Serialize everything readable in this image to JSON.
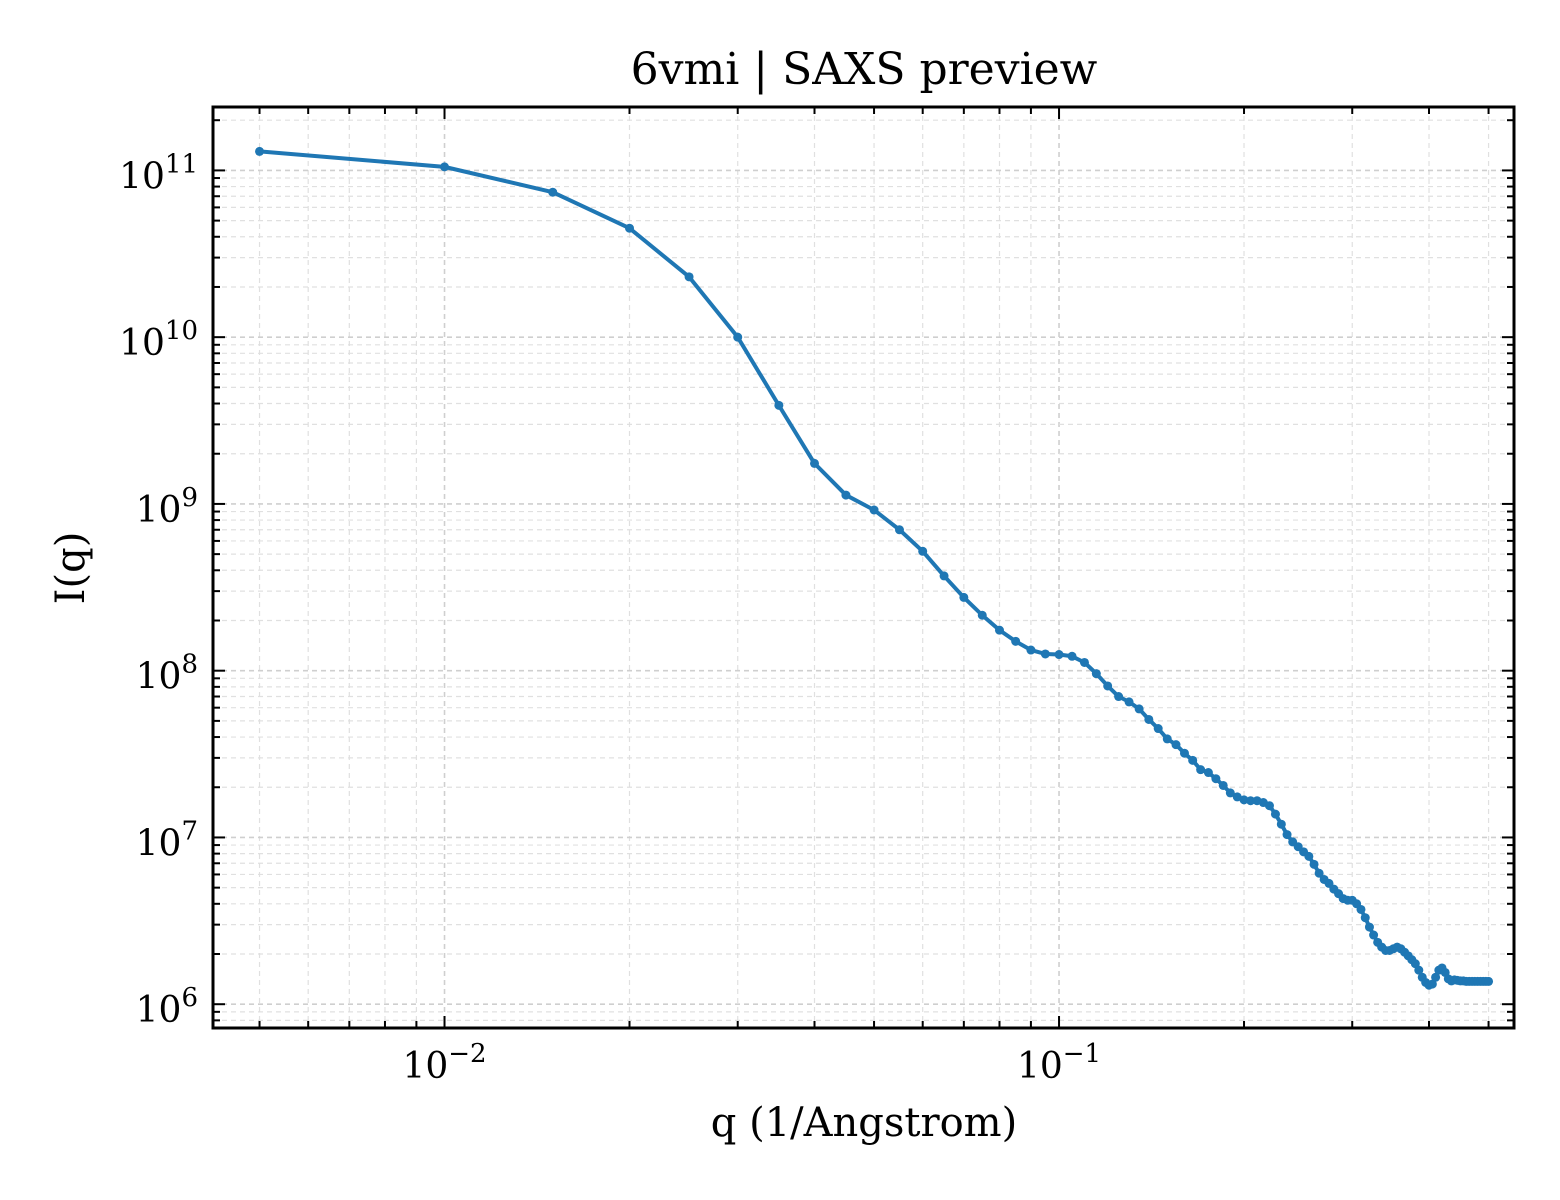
{
  "chart_data": {
    "type": "line",
    "title": "6vmi | SAXS preview",
    "xlabel": "q (1/Angstrom)",
    "ylabel": "I(q)",
    "xscale": "log",
    "yscale": "log",
    "xlim": [
      0.0042,
      0.55
    ],
    "ylim": [
      720000,
      240000000000.0
    ],
    "grid": true,
    "line_color": "#1f77b4",
    "x_tick_labels": [
      {
        "value": 0.01,
        "base": "10",
        "exp": "−2"
      },
      {
        "value": 0.1,
        "base": "10",
        "exp": "−1"
      }
    ],
    "y_tick_labels": [
      {
        "value": 1000000.0,
        "base": "10",
        "exp": "6"
      },
      {
        "value": 10000000.0,
        "base": "10",
        "exp": "7"
      },
      {
        "value": 100000000.0,
        "base": "10",
        "exp": "8"
      },
      {
        "value": 1000000000.0,
        "base": "10",
        "exp": "9"
      },
      {
        "value": 10000000000.0,
        "base": "10",
        "exp": "10"
      },
      {
        "value": 100000000000.0,
        "base": "10",
        "exp": "11"
      }
    ],
    "series": [
      {
        "x": [
          0.005,
          0.01,
          0.015,
          0.02,
          0.025,
          0.03,
          0.035,
          0.04,
          0.045,
          0.05,
          0.055,
          0.06,
          0.065,
          0.07,
          0.075,
          0.08,
          0.085,
          0.09,
          0.095,
          0.1,
          0.105,
          0.11,
          0.115,
          0.12,
          0.125,
          0.13,
          0.135,
          0.14,
          0.145,
          0.15,
          0.155,
          0.16,
          0.165,
          0.17,
          0.175,
          0.18,
          0.185,
          0.19,
          0.195,
          0.2,
          0.205,
          0.21,
          0.215,
          0.22,
          0.225,
          0.23,
          0.235,
          0.24,
          0.245,
          0.25,
          0.255,
          0.26,
          0.265,
          0.27,
          0.275,
          0.28,
          0.285,
          0.29,
          0.295,
          0.3,
          0.305,
          0.31,
          0.315,
          0.32,
          0.325,
          0.33,
          0.335,
          0.34,
          0.345,
          0.35,
          0.355,
          0.36,
          0.365,
          0.37,
          0.375,
          0.38,
          0.385,
          0.39,
          0.395,
          0.4,
          0.405,
          0.41,
          0.415,
          0.42,
          0.425,
          0.43,
          0.435,
          0.44,
          0.445,
          0.45,
          0.455,
          0.46,
          0.465,
          0.47,
          0.475,
          0.48,
          0.485,
          0.49,
          0.495,
          0.5
        ],
        "y": [
          130000000000.0,
          105000000000.0,
          74000000000.0,
          45000000000.0,
          23000000000.0,
          10000000000.0,
          3900000000.0,
          1750000000.0,
          1130000000.0,
          920000000.0,
          700000000.0,
          520000000.0,
          370000000.0,
          275000000.0,
          215000000.0,
          175000000.0,
          150000000.0,
          133000000.0,
          126000000.0,
          125000000.0,
          122000000.0,
          112000000.0,
          96000000.0,
          81000000.0,
          70000000.0,
          65000000.0,
          59000000.0,
          51000000.0,
          45000000.0,
          39000000.0,
          36000000.0,
          32000000.0,
          29000000.0,
          25500000.0,
          24500000.0,
          22500000.0,
          20500000.0,
          18500000.0,
          17500000.0,
          16800000.0,
          16600000.0,
          16600000.0,
          16200000.0,
          15500000.0,
          13800000.0,
          12000000.0,
          10400000.0,
          9400000.0,
          8800000.0,
          8200000.0,
          7700000.0,
          6900000.0,
          6100000.0,
          5600000.0,
          5300000.0,
          4900000.0,
          4600000.0,
          4300000.0,
          4200000.0,
          4200000.0,
          4000000.0,
          3700000.0,
          3300000.0,
          2900000.0,
          2600000.0,
          2350000.0,
          2200000.0,
          2100000.0,
          2100000.0,
          2150000.0,
          2200000.0,
          2150000.0,
          2050000.0,
          1950000.0,
          1850000.0,
          1750000.0,
          1600000.0,
          1450000.0,
          1350000.0,
          1300000.0,
          1320000.0,
          1450000.0,
          1600000.0,
          1650000.0,
          1550000.0,
          1420000.0,
          1380000.0,
          1400000.0,
          1390000.0,
          1380000.0,
          1380000.0,
          1370000.0,
          1370000.0,
          1370000.0,
          1370000.0,
          1370000.0,
          1370000.0,
          1370000.0,
          1370000.0,
          1370000.0
        ]
      }
    ]
  }
}
